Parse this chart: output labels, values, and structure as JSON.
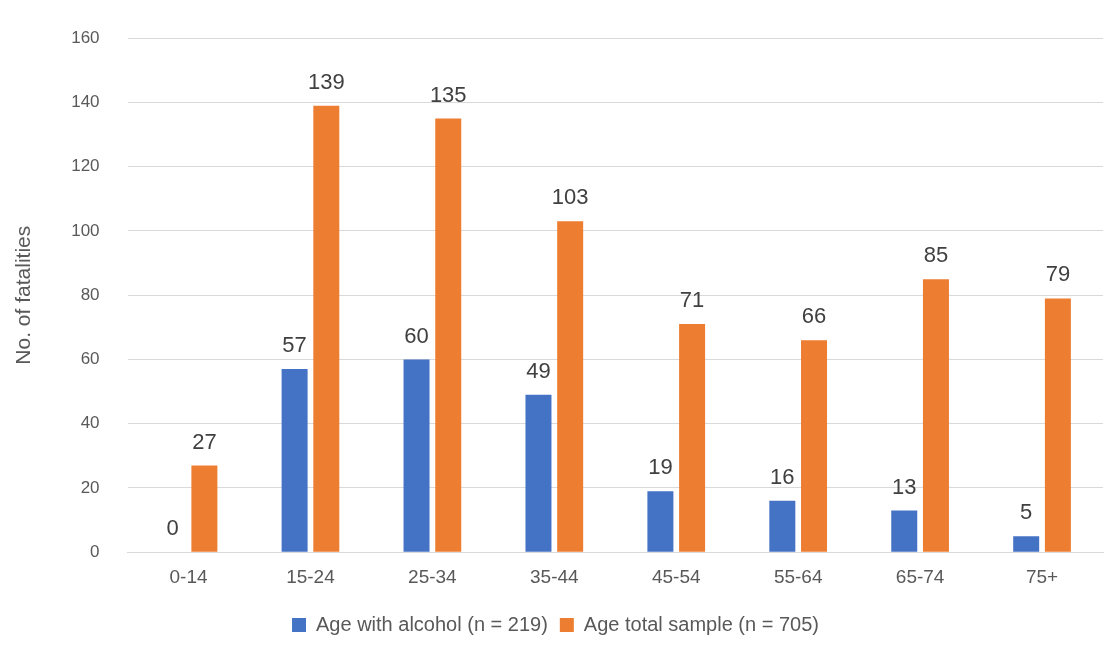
{
  "chart_data": {
    "type": "bar",
    "ylabel": "No. of fatalities",
    "categories": [
      "0-14",
      "15-24",
      "25-34",
      "35-44",
      "45-54",
      "55-64",
      "65-74",
      "75+"
    ],
    "series": [
      {
        "name": "Age with alcohol (n = 219)",
        "color": "#4472c4",
        "values": [
          0,
          57,
          60,
          49,
          19,
          16,
          13,
          5
        ]
      },
      {
        "name": "Age total sample (n = 705)",
        "color": "#ed7d31",
        "values": [
          27,
          139,
          135,
          103,
          71,
          66,
          85,
          79
        ]
      }
    ],
    "ylim": [
      0,
      160
    ],
    "yticks": [
      0,
      20,
      40,
      60,
      80,
      100,
      120,
      140,
      160
    ],
    "grid": "y",
    "legend": "bottom",
    "data_labels": true
  }
}
